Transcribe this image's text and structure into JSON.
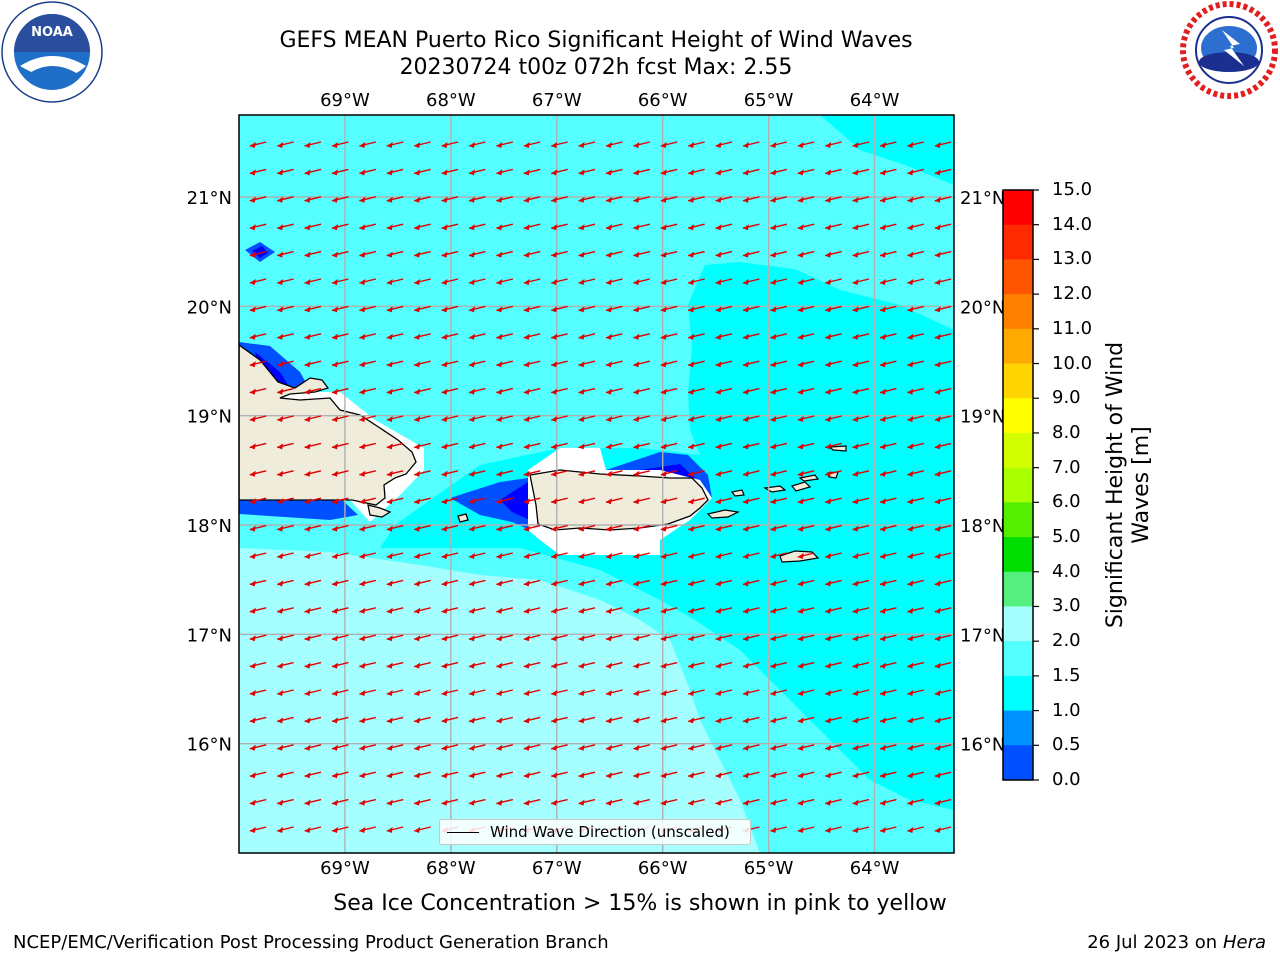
{
  "header": {
    "title_line1": "GEFS MEAN Puerto Rico Significant Height of Wind Waves",
    "title_line2": "20230724 t00z 072h fcst   Max: 2.55"
  },
  "logos": {
    "noaa_text": "NOAA",
    "noaa_ring": "NATIONAL OCEANIC AND ATMOSPHERIC ADMINISTRATION · U.S. DEPARTMENT OF COMMERCE",
    "nws_ring": "NATIONAL WEATHER SERVICE"
  },
  "map": {
    "lon_labels": [
      "69°W",
      "68°W",
      "67°W",
      "66°W",
      "65°W",
      "64°W"
    ],
    "lat_labels": [
      "21°N",
      "20°N",
      "19°N",
      "18°N",
      "17°N",
      "16°N"
    ],
    "lon_min": -70.0,
    "lon_max": -63.25,
    "lat_min": 15.0,
    "lat_max": 21.75,
    "wind_direction": "toward WSW",
    "legend_label": "Wind Wave Direction (unscaled)",
    "colors": {
      "land": "#efecdc",
      "coast": "#000000",
      "grid": "#b0b0b0",
      "arrow": "#e00000"
    }
  },
  "colorbar": {
    "label_line1": "Significant Height of Wind",
    "label_line2": "Waves [m]",
    "ticks": [
      "15.0",
      "14.0",
      "13.0",
      "12.0",
      "11.0",
      "10.0",
      "9.0",
      "8.0",
      "7.0",
      "6.0",
      "5.0",
      "4.0",
      "3.0",
      "2.0",
      "1.5",
      "1.0",
      "0.5",
      "0.0"
    ],
    "colors_top_to_bottom": [
      "#ff0000",
      "#ff2a00",
      "#ff5500",
      "#ff8000",
      "#ffaa00",
      "#ffd400",
      "#ffff00",
      "#d4ff00",
      "#aaff00",
      "#55ee00",
      "#00dd00",
      "#55f080",
      "#a6ffff",
      "#55ffff",
      "#00ffff",
      "#0090ff",
      "#0050ff",
      "#0000ff"
    ]
  },
  "caption": "Sea Ice Concentration > 15% is shown in pink to yellow",
  "footer": {
    "left": "NCEP/EMC/Verification Post Processing Product Generation Branch",
    "date": "26 Jul 2023 on ",
    "machine": "Hera"
  }
}
